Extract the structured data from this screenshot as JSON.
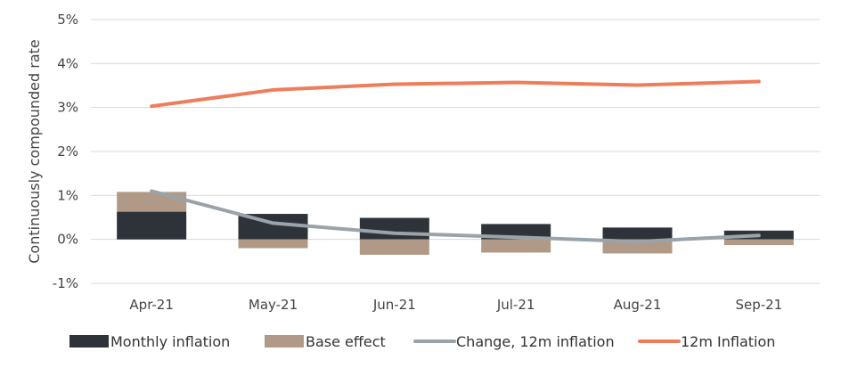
{
  "chart_data": {
    "type": "bar",
    "ylabel": "Continuously compounded rate",
    "ylim": [
      -1,
      5
    ],
    "y_ticks": [
      -1,
      0,
      1,
      2,
      3,
      4,
      5
    ],
    "y_tick_labels": [
      "-1%",
      "0%",
      "1%",
      "2%",
      "3%",
      "4%",
      "5%"
    ],
    "categories": [
      "Apr-21",
      "May-21",
      "Jun-21",
      "Jul-21",
      "Aug-21",
      "Sep-21"
    ],
    "grid": "horizontal",
    "legend_position": "bottom",
    "series": [
      {
        "name": "Monthly inflation",
        "kind": "stacked-bar",
        "color": "#2d3338",
        "values": [
          0.63,
          0.58,
          0.49,
          0.35,
          0.27,
          0.2
        ]
      },
      {
        "name": "Base effect",
        "kind": "stacked-bar",
        "color": "#b09a87",
        "values": [
          0.45,
          -0.2,
          -0.35,
          -0.3,
          -0.32,
          -0.13
        ]
      },
      {
        "name": "Change, 12m inflation",
        "kind": "line",
        "color": "#9aa3a9",
        "values": [
          1.1,
          0.37,
          0.14,
          0.05,
          -0.05,
          0.09
        ]
      },
      {
        "name": "12m Inflation",
        "kind": "line",
        "color": "#ee7d5c",
        "values": [
          3.03,
          3.4,
          3.53,
          3.57,
          3.51,
          3.59
        ]
      }
    ]
  }
}
